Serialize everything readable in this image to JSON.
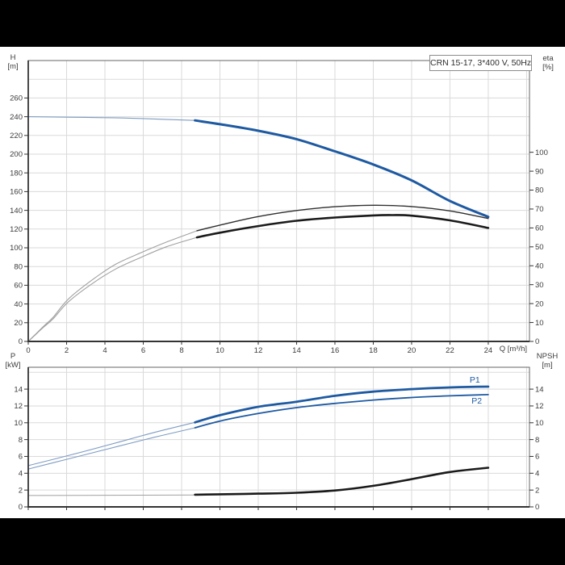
{
  "title": "CRN 15-17, 3*400 V, 50Hz",
  "axis_titles": {
    "top_left": {
      "line1": "H",
      "line2": "[m]"
    },
    "top_right": {
      "line1": "eta",
      "line2": "[%]"
    },
    "x": "Q [m³/h]",
    "bottom_left": {
      "line1": "P",
      "line2": "[kW]"
    },
    "bottom_right": {
      "line1": "NPSH",
      "line2": "[m]"
    }
  },
  "colors": {
    "blue": "#1e5aa2",
    "thin_blue": "#7e9cc4",
    "gray": "#a0a0a0",
    "dark": "#1a1a1a",
    "dark_thin": "#2e2e2e",
    "grid": "#dadada",
    "spine": "#666666",
    "axis_strong": "#333333",
    "text": "#3c3c3c"
  },
  "chart_data": [
    {
      "type": "line",
      "title": "CRN 15-17, 3*400 V, 50Hz",
      "xlabel": "Q [m³/h]",
      "ylabel_left": "H [m]",
      "ylabel_right": "eta [%]",
      "grid": true,
      "x_range": [
        0,
        26.15
      ],
      "left_range": [
        0,
        300
      ],
      "right_range": [
        0,
        148.5
      ],
      "x_ticks": [
        0,
        2,
        4,
        6,
        8,
        10,
        12,
        14,
        16,
        18,
        20,
        22,
        24
      ],
      "x_extra_grid": [
        26
      ],
      "x_show_labels": true,
      "left_ticks": [
        0,
        20,
        40,
        60,
        80,
        100,
        120,
        140,
        160,
        180,
        200,
        220,
        240,
        260
      ],
      "left_extra_grid": [
        280
      ],
      "right_ticks": [
        0,
        10,
        20,
        30,
        40,
        50,
        60,
        70,
        80,
        90,
        100
      ],
      "series": [
        {
          "name": "head-curve-preview",
          "axis": "left",
          "color": "thin_blue",
          "width": 1.1,
          "points": [
            [
              0,
              240
            ],
            [
              2,
              239.5
            ],
            [
              4,
              239
            ],
            [
              6,
              238
            ],
            [
              8.7,
              236
            ]
          ]
        },
        {
          "name": "head-curve",
          "axis": "left",
          "color": "blue",
          "width": 3,
          "points": [
            [
              8.7,
              236
            ],
            [
              10,
              232
            ],
            [
              12,
              225
            ],
            [
              14,
              216
            ],
            [
              16,
              203
            ],
            [
              18,
              189
            ],
            [
              20,
              172
            ],
            [
              22,
              150
            ],
            [
              24,
              133
            ]
          ]
        },
        {
          "name": "eta-pump-curve-preview",
          "axis": "right",
          "color": "gray",
          "width": 1.1,
          "points": [
            [
              0,
              0
            ],
            [
              0.35,
              3.5
            ],
            [
              0.8,
              8
            ],
            [
              1.3,
              12.8
            ],
            [
              2.1,
              22.5
            ],
            [
              3.4,
              33
            ],
            [
              4.6,
              41
            ],
            [
              5.9,
              47
            ],
            [
              7.2,
              52.5
            ],
            [
              8.8,
              58.5
            ]
          ]
        },
        {
          "name": "eta-pump-curve",
          "axis": "right",
          "color": "dark_thin",
          "width": 1.4,
          "points": [
            [
              8.8,
              58.5
            ],
            [
              10,
              61.5
            ],
            [
              12,
              66
            ],
            [
              14,
              69.2
            ],
            [
              16,
              71.2
            ],
            [
              18,
              72
            ],
            [
              20,
              71.3
            ],
            [
              22,
              69
            ],
            [
              24,
              65
            ]
          ]
        },
        {
          "name": "eta-total-curve-preview",
          "axis": "right",
          "color": "gray",
          "width": 1.1,
          "points": [
            [
              0,
              0
            ],
            [
              0.35,
              3.3
            ],
            [
              0.8,
              7.5
            ],
            [
              1.3,
              12
            ],
            [
              2.1,
              21
            ],
            [
              3.4,
              31
            ],
            [
              4.6,
              38.5
            ],
            [
              5.9,
              44.5
            ],
            [
              7.2,
              50
            ],
            [
              8.8,
              55
            ]
          ]
        },
        {
          "name": "eta-total-curve",
          "axis": "right",
          "color": "dark",
          "width": 2.6,
          "points": [
            [
              8.8,
              55
            ],
            [
              10,
              57.5
            ],
            [
              12,
              61
            ],
            [
              14,
              63.8
            ],
            [
              16,
              65.5
            ],
            [
              18,
              66.6
            ],
            [
              19,
              66.8
            ],
            [
              20,
              66.5
            ],
            [
              22,
              64
            ],
            [
              24,
              60
            ]
          ]
        }
      ],
      "annotations": []
    },
    {
      "type": "line",
      "title": "",
      "xlabel": "",
      "ylabel_left": "P [kW]",
      "ylabel_right": "NPSH [m]",
      "grid": true,
      "x_range": [
        0,
        26.15
      ],
      "left_range": [
        0,
        16.6
      ],
      "right_range": [
        0,
        16.6
      ],
      "x_ticks": [
        0,
        2,
        4,
        6,
        8,
        10,
        12,
        14,
        16,
        18,
        20,
        22,
        24
      ],
      "x_extra_grid": [
        26
      ],
      "x_show_labels": false,
      "left_ticks": [
        0,
        2,
        4,
        6,
        8,
        10,
        12,
        14
      ],
      "left_extra_grid": [
        16
      ],
      "right_ticks": [
        0,
        2,
        4,
        6,
        8,
        10,
        12,
        14
      ],
      "series": [
        {
          "name": "p1-curve-preview",
          "axis": "left",
          "color": "thin_blue",
          "width": 1.1,
          "points": [
            [
              0,
              4.9
            ],
            [
              2,
              6.05
            ],
            [
              4,
              7.25
            ],
            [
              6,
              8.5
            ],
            [
              7,
              9.1
            ],
            [
              8.7,
              10.05
            ]
          ]
        },
        {
          "name": "p1-curve",
          "axis": "left",
          "color": "blue",
          "width": 2.8,
          "points": [
            [
              8.7,
              10.05
            ],
            [
              10,
              10.9
            ],
            [
              12,
              11.9
            ],
            [
              14,
              12.5
            ],
            [
              16,
              13.2
            ],
            [
              18,
              13.7
            ],
            [
              20,
              14.0
            ],
            [
              22,
              14.2
            ],
            [
              24,
              14.3
            ]
          ]
        },
        {
          "name": "p2-curve-preview",
          "axis": "left",
          "color": "thin_blue",
          "width": 1.1,
          "points": [
            [
              0,
              4.5
            ],
            [
              2,
              5.65
            ],
            [
              4,
              6.8
            ],
            [
              6,
              7.95
            ],
            [
              7,
              8.5
            ],
            [
              8.7,
              9.4
            ]
          ]
        },
        {
          "name": "p2-curve",
          "axis": "left",
          "color": "blue",
          "width": 1.8,
          "points": [
            [
              8.7,
              9.4
            ],
            [
              10,
              10.2
            ],
            [
              12,
              11.1
            ],
            [
              14,
              11.8
            ],
            [
              16,
              12.3
            ],
            [
              18,
              12.7
            ],
            [
              20,
              13.0
            ],
            [
              22,
              13.2
            ],
            [
              24,
              13.35
            ]
          ]
        },
        {
          "name": "npsh-curve-preview",
          "axis": "right",
          "color": "gray",
          "width": 1,
          "points": [
            [
              0,
              1.35
            ],
            [
              4,
              1.38
            ],
            [
              8.7,
              1.42
            ]
          ]
        },
        {
          "name": "npsh-curve",
          "axis": "right",
          "color": "dark",
          "width": 2.6,
          "points": [
            [
              8.7,
              1.45
            ],
            [
              10,
              1.5
            ],
            [
              12,
              1.57
            ],
            [
              14,
              1.68
            ],
            [
              16,
              1.95
            ],
            [
              18,
              2.5
            ],
            [
              20,
              3.3
            ],
            [
              22,
              4.15
            ],
            [
              24,
              4.65
            ]
          ]
        }
      ],
      "annotations": [
        {
          "text": "P1",
          "q": 23.3,
          "v": 15.1,
          "color": "blue"
        },
        {
          "text": "P2",
          "q": 23.4,
          "v": 12.6,
          "color": "blue"
        }
      ]
    }
  ]
}
